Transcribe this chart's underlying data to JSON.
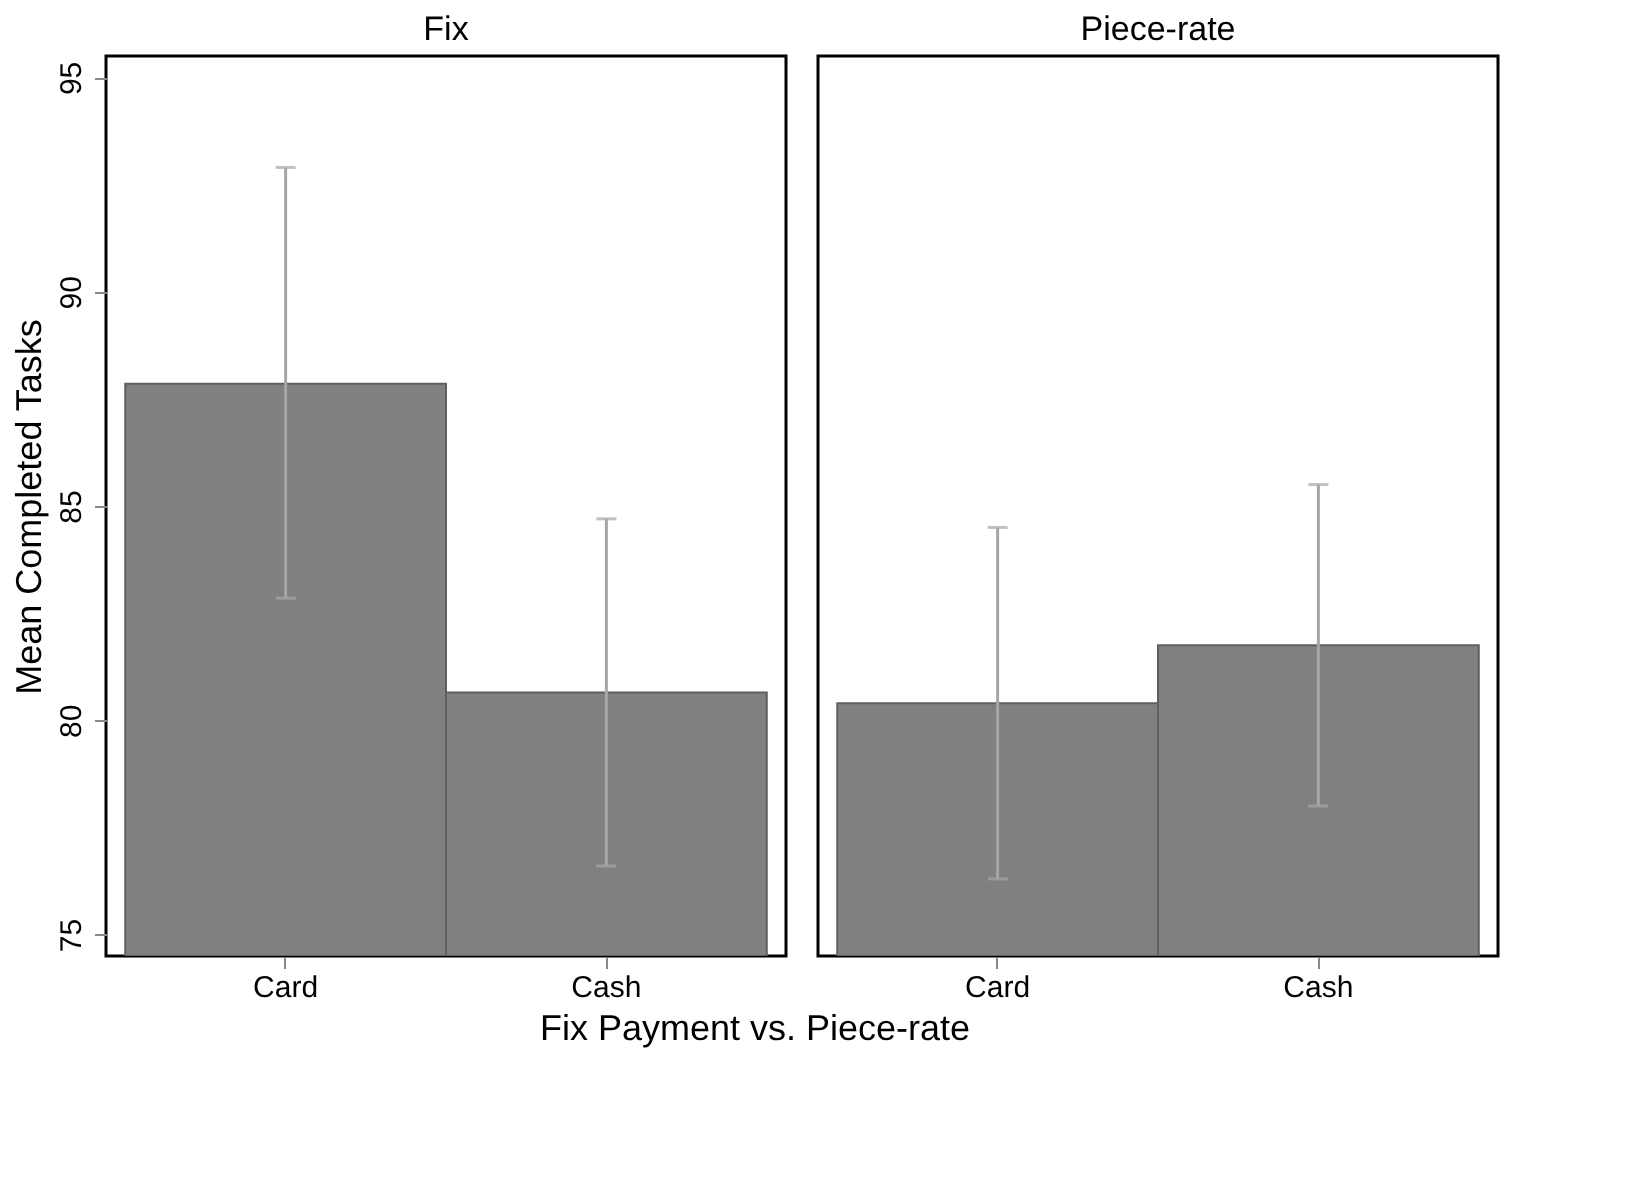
{
  "chart_data": [
    {
      "type": "bar",
      "title": "Fix",
      "xlabel": "Fix Payment vs. Piece-rate",
      "ylabel": "Mean Completed Tasks",
      "categories": [
        "Card",
        "Cash"
      ],
      "values": [
        87.85,
        80.65
      ],
      "errors": [
        [
          82.85,
          92.9
        ],
        [
          76.6,
          84.7
        ]
      ],
      "color": "#808080",
      "ylim": [
        74.5,
        95.5
      ],
      "yticks": [
        75,
        80,
        85,
        90,
        95
      ],
      "grid": false
    },
    {
      "type": "bar",
      "title": "Piece-rate",
      "categories": [
        "Card",
        "Cash"
      ],
      "values": [
        80.4,
        81.75
      ],
      "errors": [
        [
          76.3,
          84.5
        ],
        [
          78.0,
          85.5
        ]
      ],
      "color": "#808080",
      "ylim": [
        74.5,
        95.5
      ],
      "yticks": [
        75,
        80,
        85,
        90,
        95
      ],
      "grid": false,
      "tick_labels": "x"
    }
  ]
}
